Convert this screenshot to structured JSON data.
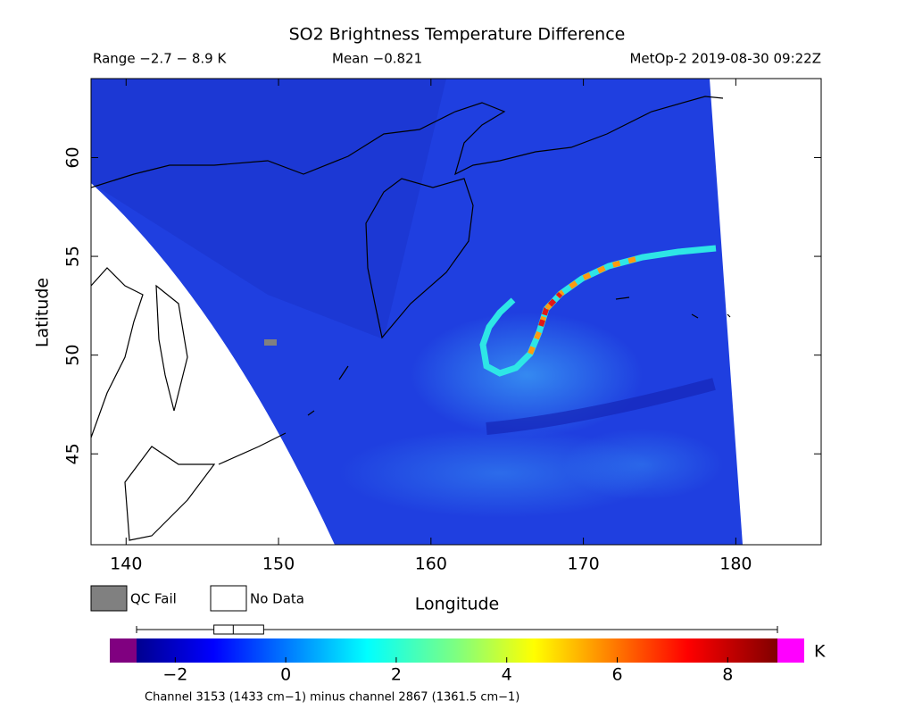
{
  "header": {
    "title": "SO2 Brightness Temperature Difference",
    "range": "Range −2.7 − 8.9 K",
    "mean": "Mean −0.821",
    "satellite": "MetOp-2 2019-08-30 09:22Z"
  },
  "map": {
    "x_label": "Longitude",
    "y_label": "Latitude",
    "xlim": [
      137.7,
      185.6
    ],
    "ylim": [
      40.4,
      64.0
    ],
    "xticks": [
      140,
      150,
      160,
      170,
      180
    ],
    "yticks": [
      45,
      50,
      55,
      60
    ]
  },
  "legend": {
    "qc_fail": "QC Fail",
    "no_data": "No Data"
  },
  "colorbar": {
    "lim": [
      -2.7,
      8.9
    ],
    "ticks": [
      {
        "value": -2,
        "label": "−2"
      },
      0,
      2,
      4,
      6,
      8
    ],
    "unit": "K",
    "caption": "Channel 3153 (1433 cm−1) minus channel 2867 (1361.5 cm−1)",
    "boxplot": {
      "min": -2.7,
      "q1": -1.3,
      "median": -0.95,
      "q3": -0.4,
      "max": 8.9
    }
  }
}
